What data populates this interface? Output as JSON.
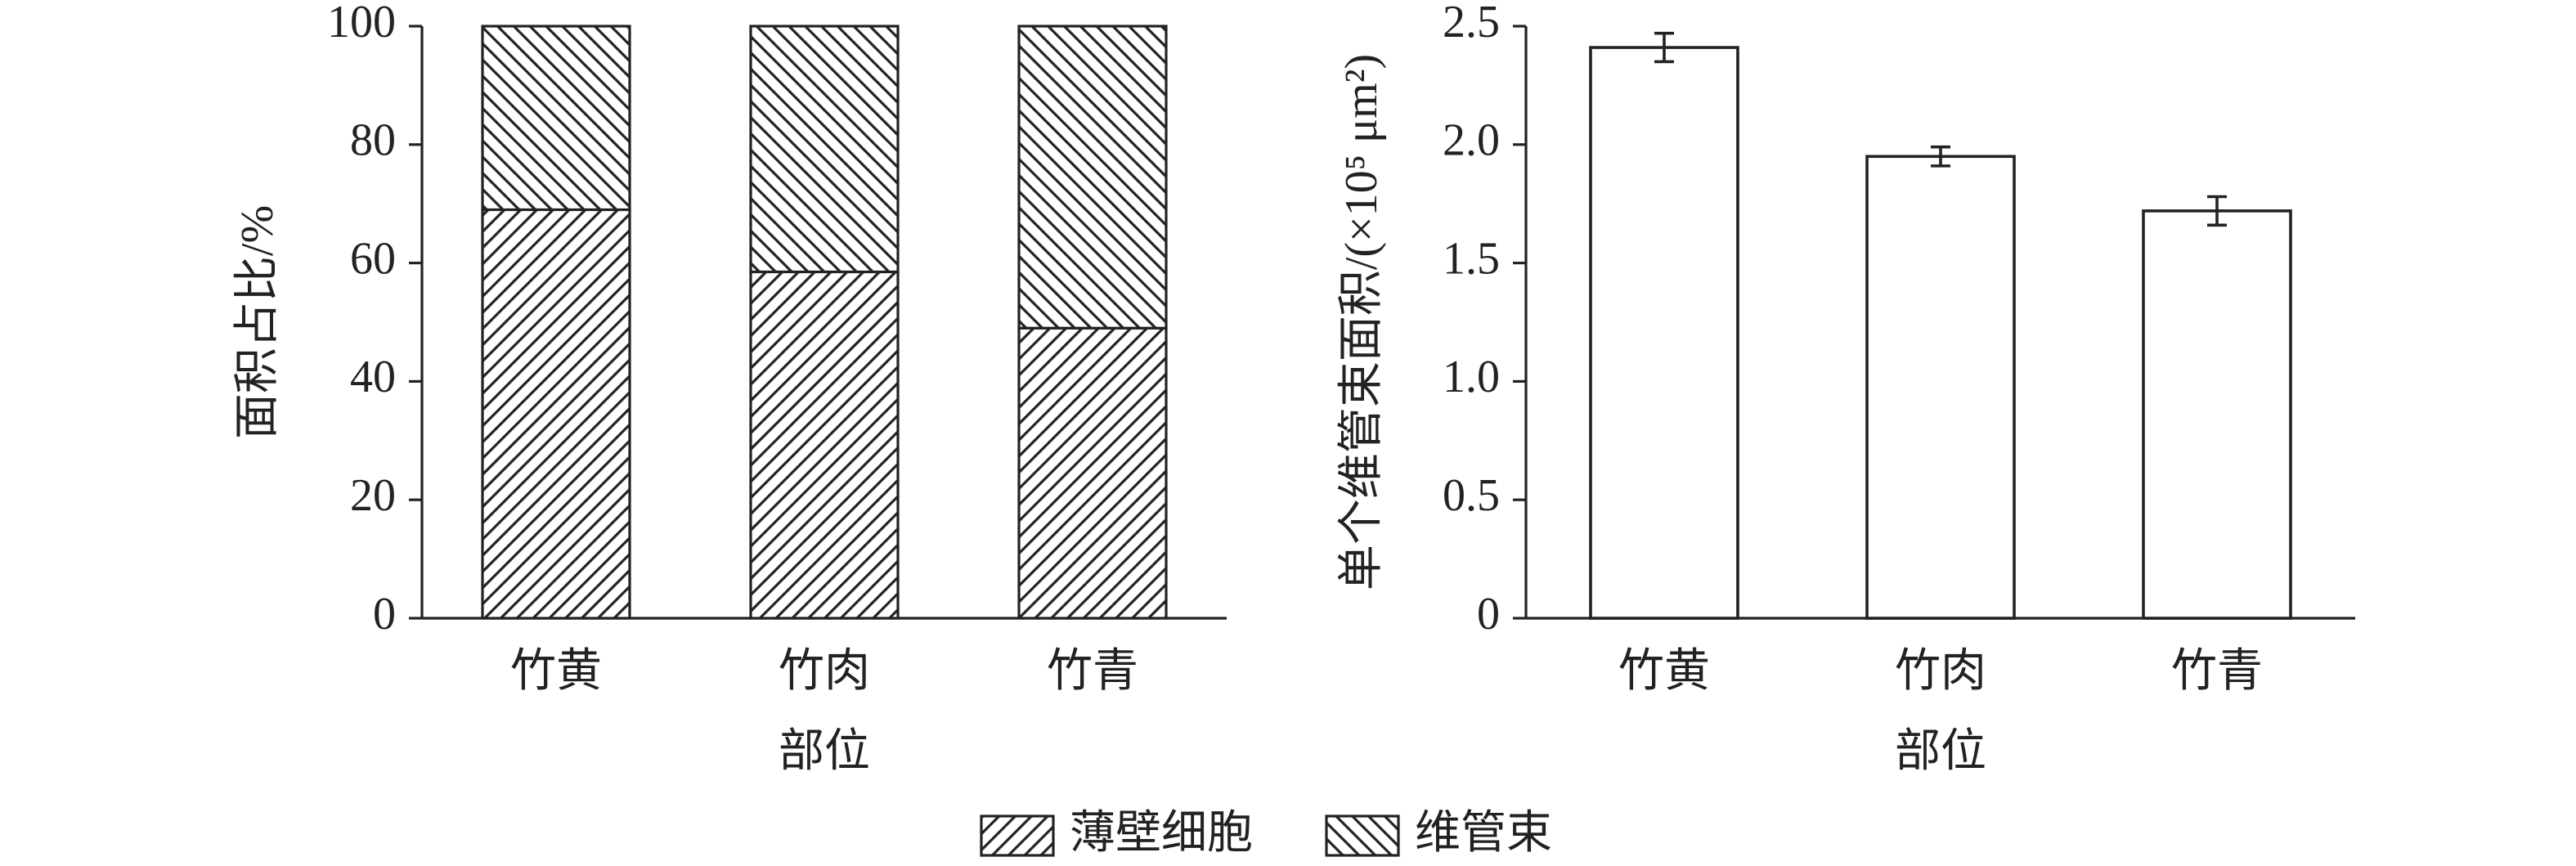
{
  "chart_data": [
    {
      "type": "stacked_bar",
      "ylabel": "面积占比/%",
      "xlabel": "部位",
      "categories": [
        "竹黄",
        "竹肉",
        "竹青"
      ],
      "series": [
        {
          "name": "薄壁细胞",
          "color": "#222222",
          "hatch": "/",
          "values": [
            69,
            58.5,
            49
          ]
        },
        {
          "name": "维管束",
          "color": "#222222",
          "hatch": "\\",
          "values": [
            31,
            41.5,
            51
          ]
        }
      ],
      "ylim": [
        0,
        100
      ],
      "yticks": [
        0,
        20,
        40,
        60,
        80,
        100
      ],
      "legend": "bottom"
    },
    {
      "type": "bar",
      "ylabel": "单个维管束面积/(×10⁵ μm²)",
      "xlabel": "部位",
      "categories": [
        "竹黄",
        "竹肉",
        "竹青"
      ],
      "values": [
        2.41,
        1.95,
        1.72
      ],
      "errors": [
        0.06,
        0.04,
        0.06
      ],
      "color": "#ffffff",
      "ylim": [
        0,
        2.5
      ],
      "yticks": [
        0,
        0.5,
        {
          "value": 1,
          "label": "1.0"
        },
        1.5,
        {
          "value": 2,
          "label": "2.0"
        },
        2.5
      ]
    }
  ]
}
